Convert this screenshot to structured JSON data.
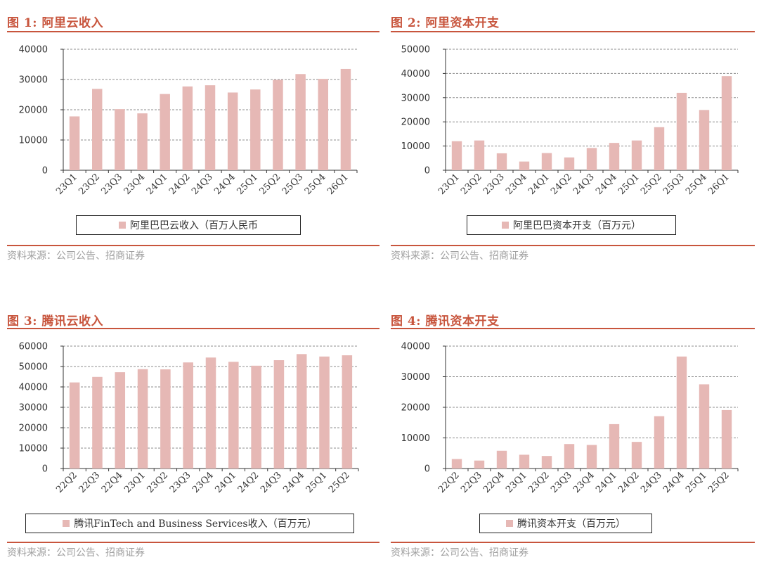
{
  "chart_data": [
    {
      "type": "bar",
      "title": "图 1:  阿里云收入",
      "legend": "阿里巴巴云收入（百万人民币",
      "source": "资料来源：公司公告、招商证券",
      "categories": [
        "23Q1",
        "23Q2",
        "23Q3",
        "23Q4",
        "24Q1",
        "24Q2",
        "24Q3",
        "24Q4",
        "25Q1",
        "25Q2",
        "25Q3",
        "25Q4",
        "26Q1"
      ],
      "series": [
        {
          "name": "阿里巴巴云收入（百万人民币",
          "values": [
            17800,
            26900,
            20200,
            18800,
            25200,
            27700,
            28100,
            25700,
            26700,
            29900,
            31800,
            30200,
            33500
          ]
        }
      ],
      "yticks": [
        "0",
        "10000",
        "20000",
        "30000",
        "40000"
      ],
      "ylim": [
        0,
        40000
      ],
      "color": "#e6b8b5"
    },
    {
      "type": "bar",
      "title": "图 2:  阿里资本开支",
      "legend": "阿里巴巴资本开支（百万元）",
      "source": "资料来源：公司公告、招商证券",
      "categories": [
        "23Q1",
        "23Q2",
        "23Q3",
        "23Q4",
        "24Q1",
        "24Q2",
        "24Q3",
        "24Q4",
        "25Q1",
        "25Q2",
        "25Q3",
        "25Q4",
        "26Q1"
      ],
      "series": [
        {
          "name": "阿里巴巴资本开支（百万元）",
          "values": [
            12000,
            12300,
            7000,
            3600,
            7100,
            5300,
            9200,
            11300,
            12300,
            17800,
            32000,
            24900,
            38900
          ]
        }
      ],
      "yticks": [
        "0",
        "10000",
        "20000",
        "30000",
        "40000",
        "50000"
      ],
      "ylim": [
        0,
        50000
      ],
      "color": "#e6b8b5"
    },
    {
      "type": "bar",
      "title": "图 3:  腾讯云收入",
      "legend": "腾讯FinTech and Business Services收入（百万元）",
      "source": "资料来源：公司公告、招商证券",
      "categories": [
        "22Q2",
        "22Q3",
        "22Q4",
        "23Q1",
        "23Q2",
        "23Q3",
        "23Q4",
        "24Q1",
        "24Q2",
        "24Q3",
        "24Q4",
        "25Q1",
        "25Q2"
      ],
      "series": [
        {
          "name": "腾讯FinTech and Business Services收入（百万元）",
          "values": [
            42200,
            44900,
            47200,
            48700,
            48600,
            52000,
            54400,
            52300,
            50400,
            53100,
            56100,
            54900,
            55500
          ]
        }
      ],
      "yticks": [
        "0",
        "10000",
        "20000",
        "30000",
        "40000",
        "50000",
        "60000"
      ],
      "ylim": [
        0,
        60000
      ],
      "color": "#e6b8b5"
    },
    {
      "type": "bar",
      "title": "图 4:  腾讯资本开支",
      "legend": "腾讯资本开支（百万元）",
      "source": "资料来源：公司公告、招商证券",
      "categories": [
        "22Q2",
        "22Q3",
        "22Q4",
        "23Q1",
        "23Q2",
        "23Q3",
        "23Q4",
        "24Q1",
        "24Q2",
        "24Q3",
        "24Q4",
        "25Q1",
        "25Q2"
      ],
      "series": [
        {
          "name": "腾讯资本开支（百万元）",
          "values": [
            3100,
            2600,
            5800,
            4500,
            4100,
            8000,
            7700,
            14500,
            8700,
            17100,
            36600,
            27500,
            19100
          ]
        }
      ],
      "yticks": [
        "0",
        "10000",
        "20000",
        "30000",
        "40000"
      ],
      "ylim": [
        0,
        40000
      ],
      "color": "#e6b8b5"
    }
  ]
}
